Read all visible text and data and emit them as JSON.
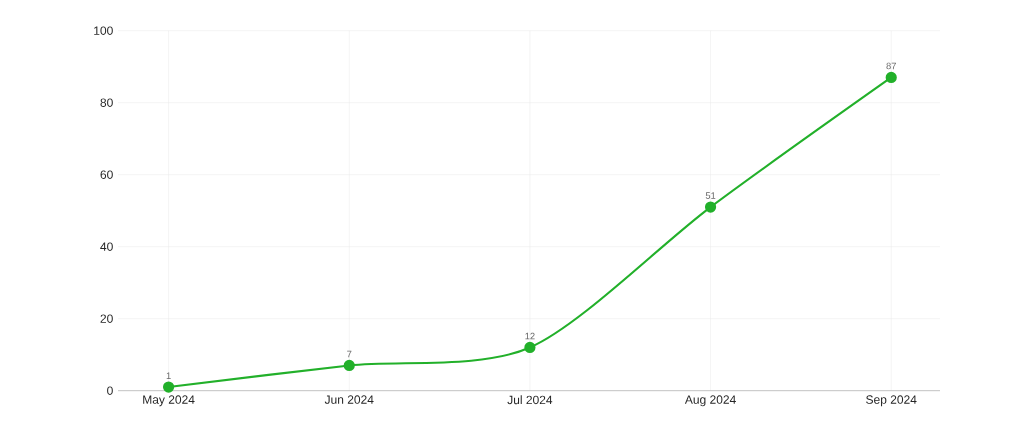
{
  "chart_data": {
    "type": "line",
    "categories": [
      "May 2024",
      "Jun 2024",
      "Jul 2024",
      "Aug 2024",
      "Sep 2024"
    ],
    "series": [
      {
        "color": "#22b02a",
        "values": [
          1,
          7,
          12,
          51,
          87
        ]
      }
    ],
    "ylim": [
      0,
      100
    ],
    "yticks": [
      0,
      20,
      40,
      60,
      80,
      100
    ],
    "grid": true,
    "marker": "circle",
    "line_style": "solid",
    "data_labels": true
  }
}
